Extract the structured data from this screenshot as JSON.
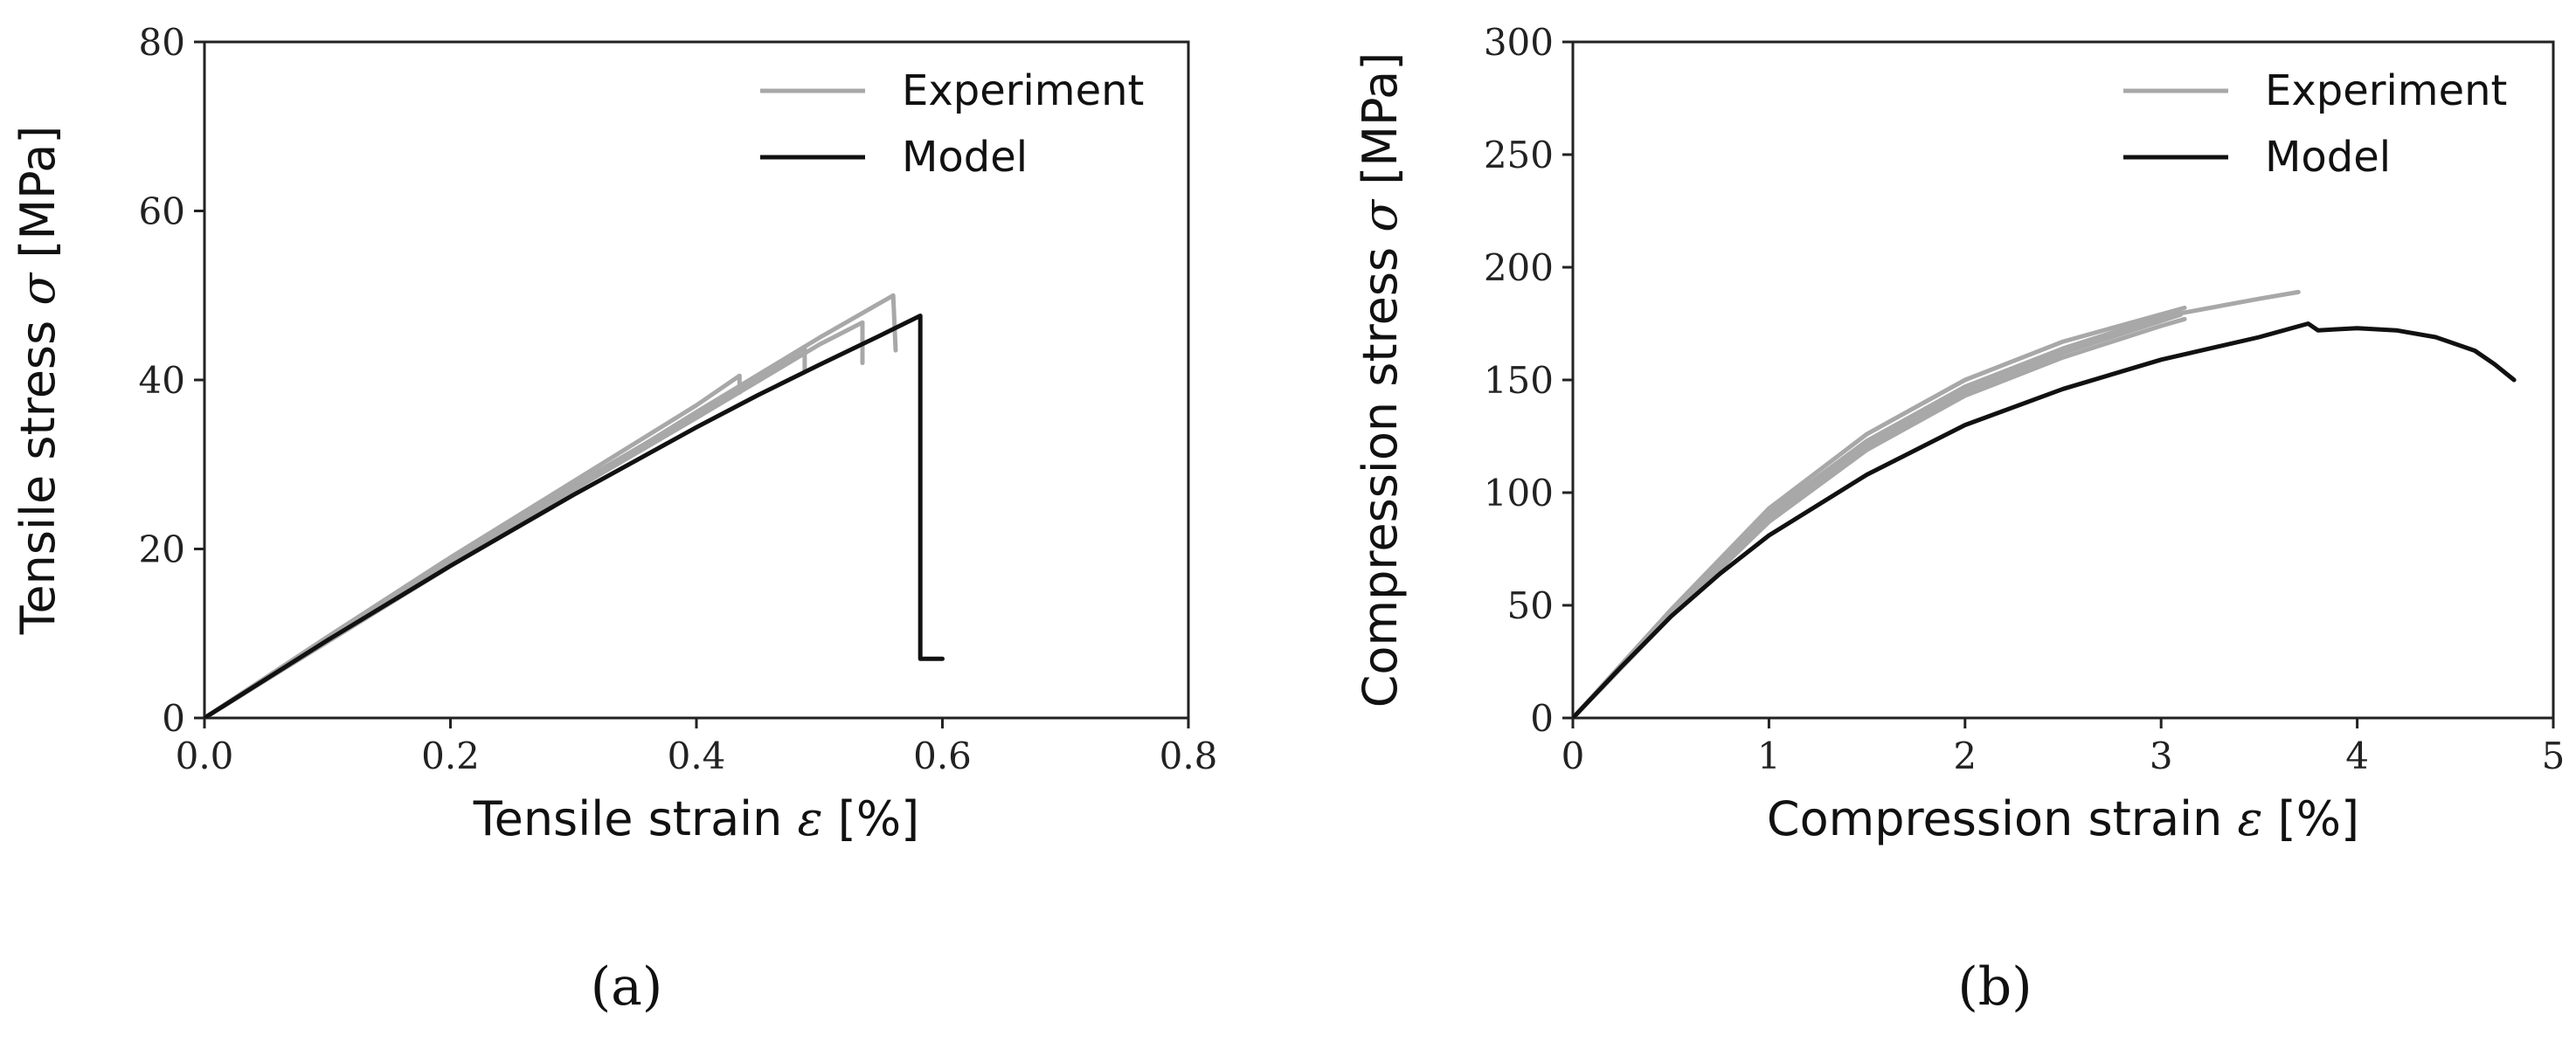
{
  "chart_data": [
    {
      "type": "line",
      "panel_label": "(a)",
      "xlabel_text": "Tensile strain",
      "xlabel_symbol": "ε",
      "xlabel_unit": "[%]",
      "ylabel_text": "Tensile stress",
      "ylabel_symbol": "σ",
      "ylabel_unit": "[MPa]",
      "xlim": [
        0,
        0.8
      ],
      "ylim": [
        0,
        80
      ],
      "xticks": [
        0.0,
        0.2,
        0.4,
        0.6,
        0.8
      ],
      "xtick_labels": [
        "0.0",
        "0.2",
        "0.4",
        "0.6",
        "0.8"
      ],
      "yticks": [
        0,
        20,
        40,
        60,
        80
      ],
      "ytick_labels": [
        "0",
        "20",
        "40",
        "60",
        "80"
      ],
      "legend": {
        "placement": "top-right",
        "entries": [
          "Experiment",
          "Model"
        ]
      },
      "series": [
        {
          "name": "Experiment",
          "color": "#a8a8a8",
          "curves": [
            [
              [
                0,
                0
              ],
              [
                0.1,
                9.6
              ],
              [
                0.2,
                19.0
              ],
              [
                0.3,
                28.0
              ],
              [
                0.4,
                37.0
              ],
              [
                0.435,
                40.5
              ],
              [
                0.435,
                38.5
              ]
            ],
            [
              [
                0,
                0
              ],
              [
                0.1,
                9.3
              ],
              [
                0.2,
                18.6
              ],
              [
                0.3,
                27.5
              ],
              [
                0.4,
                36.0
              ],
              [
                0.45,
                40.0
              ],
              [
                0.488,
                43.8
              ],
              [
                0.488,
                41.0
              ]
            ],
            [
              [
                0,
                0
              ],
              [
                0.1,
                9.0
              ],
              [
                0.2,
                18.0
              ],
              [
                0.3,
                27.0
              ],
              [
                0.4,
                35.5
              ],
              [
                0.5,
                44.2
              ],
              [
                0.535,
                46.8
              ],
              [
                0.535,
                42.0
              ]
            ],
            [
              [
                0,
                0
              ],
              [
                0.1,
                9.1
              ],
              [
                0.2,
                18.2
              ],
              [
                0.3,
                27.2
              ],
              [
                0.4,
                36.2
              ],
              [
                0.5,
                45.0
              ],
              [
                0.56,
                50.0
              ],
              [
                0.562,
                43.5
              ]
            ]
          ]
        },
        {
          "name": "Model",
          "color": "#111111",
          "curves": [
            [
              [
                0,
                0
              ],
              [
                0.05,
                4.6
              ],
              [
                0.1,
                9.2
              ],
              [
                0.15,
                13.6
              ],
              [
                0.2,
                18.0
              ],
              [
                0.25,
                22.2
              ],
              [
                0.3,
                26.4
              ],
              [
                0.35,
                30.4
              ],
              [
                0.4,
                34.4
              ],
              [
                0.45,
                38.2
              ],
              [
                0.5,
                41.8
              ],
              [
                0.55,
                45.3
              ],
              [
                0.582,
                47.6
              ],
              [
                0.582,
                7.0
              ],
              [
                0.6,
                7.0
              ]
            ]
          ]
        }
      ]
    },
    {
      "type": "line",
      "panel_label": "(b)",
      "xlabel_text": "Compression strain",
      "xlabel_symbol": "ε",
      "xlabel_unit": "[%]",
      "ylabel_text": "Compression stress",
      "ylabel_symbol": "σ",
      "ylabel_unit": "[MPa]",
      "xlim": [
        0,
        5
      ],
      "ylim": [
        0,
        300
      ],
      "xticks": [
        0,
        1,
        2,
        3,
        4,
        5
      ],
      "xtick_labels": [
        "0",
        "1",
        "2",
        "3",
        "4",
        "5"
      ],
      "yticks": [
        0,
        50,
        100,
        150,
        200,
        250,
        300
      ],
      "ytick_labels": [
        "0",
        "50",
        "100",
        "150",
        "200",
        "250",
        "300"
      ],
      "legend": {
        "placement": "top-right",
        "entries": [
          "Experiment",
          "Model"
        ]
      },
      "series": [
        {
          "name": "Experiment",
          "color": "#a8a8a8",
          "curves": [
            [
              [
                0,
                0
              ],
              [
                0.5,
                47
              ],
              [
                1,
                91
              ],
              [
                1.5,
                123
              ],
              [
                2,
                147
              ],
              [
                2.5,
                164
              ],
              [
                3,
                178
              ],
              [
                3.5,
                186
              ],
              [
                3.7,
                189
              ]
            ],
            [
              [
                0,
                0
              ],
              [
                0.5,
                45
              ],
              [
                1,
                87
              ],
              [
                1.5,
                119
              ],
              [
                2,
                143
              ],
              [
                2.5,
                160
              ],
              [
                3,
                174
              ],
              [
                3.12,
                177
              ]
            ],
            [
              [
                0,
                0
              ],
              [
                0.5,
                48
              ],
              [
                1,
                93
              ],
              [
                1.5,
                126
              ],
              [
                2,
                150
              ],
              [
                2.5,
                167
              ],
              [
                3.12,
                182
              ]
            ],
            [
              [
                0,
                0
              ],
              [
                0.5,
                46
              ],
              [
                1,
                89
              ],
              [
                1.5,
                121
              ],
              [
                2,
                145
              ],
              [
                2.5,
                162
              ],
              [
                3.1,
                179
              ]
            ]
          ]
        },
        {
          "name": "Model",
          "color": "#111111",
          "curves": [
            [
              [
                0,
                0
              ],
              [
                0.25,
                23
              ],
              [
                0.5,
                45
              ],
              [
                0.75,
                64
              ],
              [
                1,
                81
              ],
              [
                1.5,
                108
              ],
              [
                2,
                130
              ],
              [
                2.5,
                146
              ],
              [
                3,
                159
              ],
              [
                3.5,
                169
              ],
              [
                3.75,
                175
              ],
              [
                3.8,
                172
              ],
              [
                4,
                173
              ],
              [
                4.2,
                172
              ],
              [
                4.4,
                169
              ],
              [
                4.6,
                163
              ],
              [
                4.7,
                157
              ],
              [
                4.8,
                150
              ]
            ]
          ]
        }
      ]
    }
  ]
}
